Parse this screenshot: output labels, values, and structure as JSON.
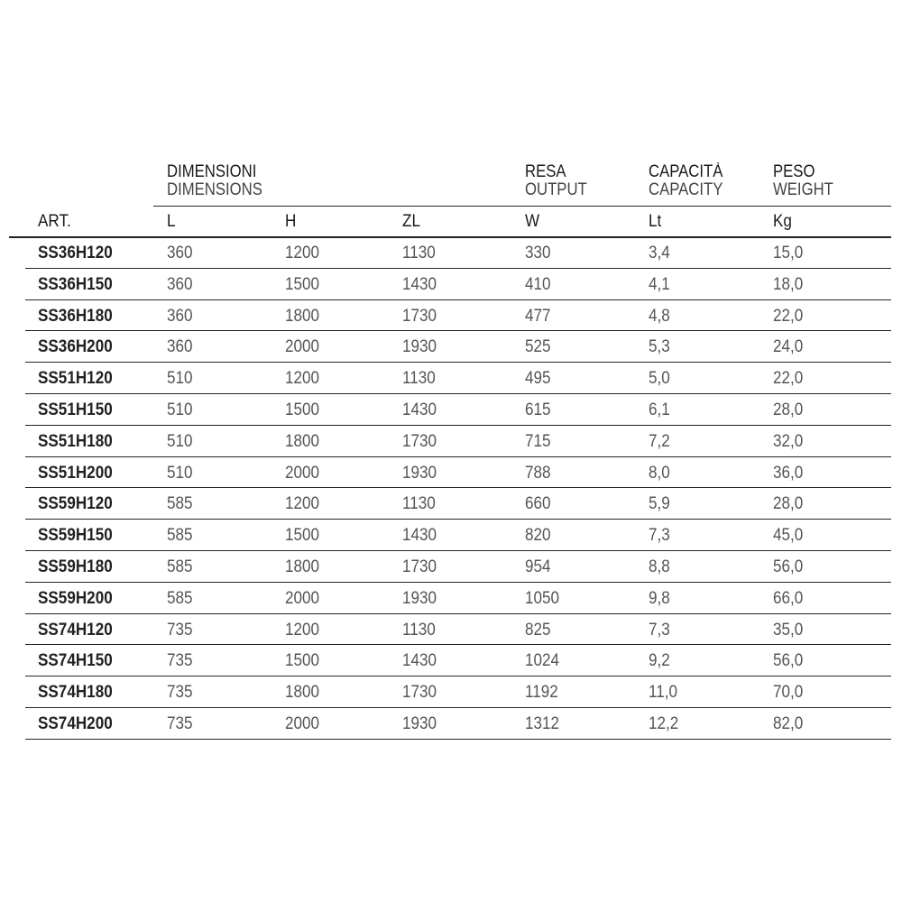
{
  "groups": [
    {
      "it": "DIMENSIONI",
      "en": "DIMENSIONS"
    },
    {
      "it": "RESA",
      "en": "OUTPUT"
    },
    {
      "it": "CAPACITÀ",
      "en": "CAPACITY"
    },
    {
      "it": "PESO",
      "en": "WEIGHT"
    }
  ],
  "columns": [
    "ART.",
    "L",
    "H",
    "ZL",
    "W",
    "Lt",
    "Kg"
  ],
  "rows": [
    [
      "SS36H120",
      "360",
      "1200",
      "1130",
      "330",
      "3,4",
      "15,0"
    ],
    [
      "SS36H150",
      "360",
      "1500",
      "1430",
      "410",
      "4,1",
      "18,0"
    ],
    [
      "SS36H180",
      "360",
      "1800",
      "1730",
      "477",
      "4,8",
      "22,0"
    ],
    [
      "SS36H200",
      "360",
      "2000",
      "1930",
      "525",
      "5,3",
      "24,0"
    ],
    [
      "SS51H120",
      "510",
      "1200",
      "1130",
      "495",
      "5,0",
      "22,0"
    ],
    [
      "SS51H150",
      "510",
      "1500",
      "1430",
      "615",
      "6,1",
      "28,0"
    ],
    [
      "SS51H180",
      "510",
      "1800",
      "1730",
      "715",
      "7,2",
      "32,0"
    ],
    [
      "SS51H200",
      "510",
      "2000",
      "1930",
      "788",
      "8,0",
      "36,0"
    ],
    [
      "SS59H120",
      "585",
      "1200",
      "1130",
      "660",
      "5,9",
      "28,0"
    ],
    [
      "SS59H150",
      "585",
      "1500",
      "1430",
      "820",
      "7,3",
      "45,0"
    ],
    [
      "SS59H180",
      "585",
      "1800",
      "1730",
      "954",
      "8,8",
      "56,0"
    ],
    [
      "SS59H200",
      "585",
      "2000",
      "1930",
      "1050",
      "9,8",
      "66,0"
    ],
    [
      "SS74H120",
      "735",
      "1200",
      "1130",
      "825",
      "7,3",
      "35,0"
    ],
    [
      "SS74H150",
      "735",
      "1500",
      "1430",
      "1024",
      "9,2",
      "56,0"
    ],
    [
      "SS74H180",
      "735",
      "1800",
      "1730",
      "1192",
      "11,0",
      "70,0"
    ],
    [
      "SS74H200",
      "735",
      "2000",
      "1930",
      "1312",
      "12,2",
      "82,0"
    ]
  ]
}
